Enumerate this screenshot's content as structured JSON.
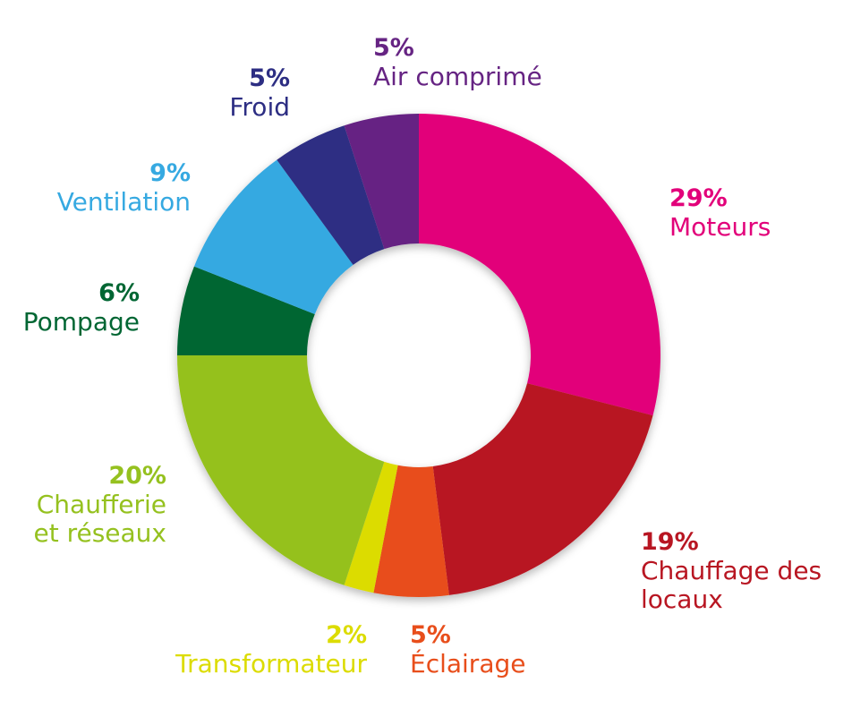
{
  "chart_data": {
    "type": "pie",
    "donut": true,
    "slices": [
      {
        "pct_label": "29%",
        "label": "Moteurs",
        "value": 29,
        "color": "#E2007A"
      },
      {
        "pct_label": "19%",
        "label": "Chauffage des",
        "label2": "locaux",
        "value": 19,
        "color": "#B81622"
      },
      {
        "pct_label": "5%",
        "label": "Éclairage",
        "value": 5,
        "color": "#E84E1B"
      },
      {
        "pct_label": "2%",
        "label": "Transformateur",
        "value": 2,
        "color": "#DCDC00"
      },
      {
        "pct_label": "20%",
        "label": "Chaufferie",
        "label2": "et réseaux",
        "value": 20,
        "color": "#95C11F"
      },
      {
        "pct_label": "6%",
        "label": "Pompage",
        "value": 6,
        "color": "#006633"
      },
      {
        "pct_label": "9%",
        "label": "Ventilation",
        "value": 9,
        "color": "#36A9E1"
      },
      {
        "pct_label": "5%",
        "label": "Froid",
        "value": 5,
        "color": "#2D2E83"
      },
      {
        "pct_label": "5%",
        "label": "Air comprimé",
        "value": 5,
        "color": "#662483"
      }
    ]
  }
}
